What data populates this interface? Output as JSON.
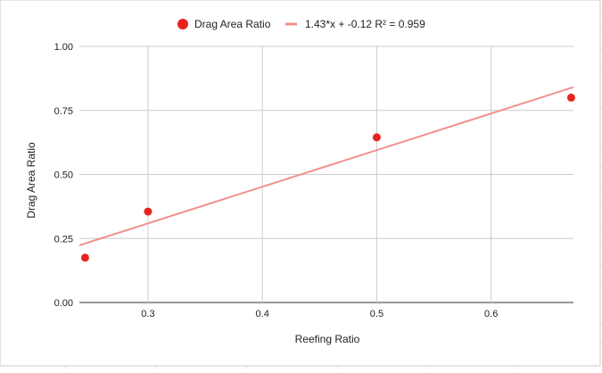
{
  "chart_data": {
    "type": "scatter",
    "xlabel": "Reefing Ratio",
    "ylabel": "Drag Area Ratio",
    "xlim": [
      0.24,
      0.672
    ],
    "ylim": [
      0,
      1
    ],
    "x_ticks": [
      {
        "value": 0.3,
        "label": "0.3"
      },
      {
        "value": 0.4,
        "label": "0.4"
      },
      {
        "value": 0.5,
        "label": "0.5"
      },
      {
        "value": 0.6,
        "label": "0.6"
      }
    ],
    "y_ticks": [
      {
        "value": 0,
        "label": "0.00"
      },
      {
        "value": 0.25,
        "label": "0.25"
      },
      {
        "value": 0.5,
        "label": "0.50"
      },
      {
        "value": 0.75,
        "label": "0.75"
      },
      {
        "value": 1,
        "label": "1.00"
      }
    ],
    "grid": true,
    "legend_position": "top",
    "series": [
      {
        "name": "Drag Area Ratio",
        "color": "#e8231f",
        "points": [
          {
            "x": 0.245,
            "y": 0.175
          },
          {
            "x": 0.3,
            "y": 0.355
          },
          {
            "x": 0.5,
            "y": 0.645
          },
          {
            "x": 0.67,
            "y": 0.8
          }
        ]
      }
    ],
    "trendline": {
      "label": "1.43*x + -0.12 R² = 0.959",
      "color": "#f0908c",
      "slope": 1.43,
      "intercept": -0.12,
      "x_range": [
        0.24,
        0.672
      ]
    }
  }
}
